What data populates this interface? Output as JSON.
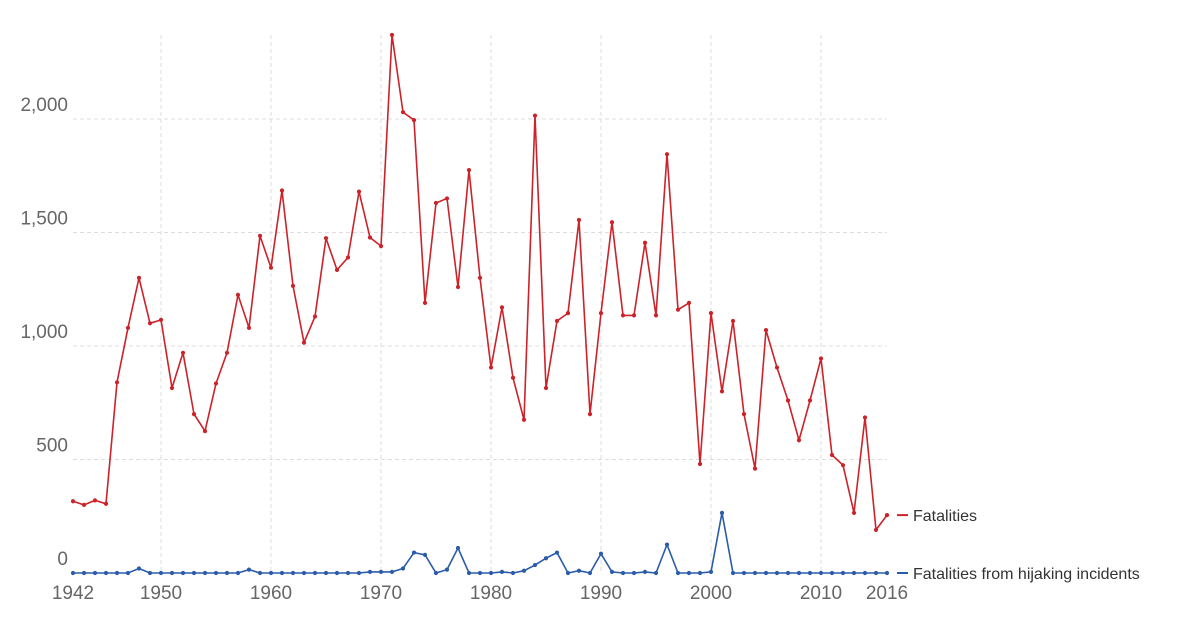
{
  "chart_data": {
    "type": "line",
    "x": [
      1942,
      1943,
      1944,
      1945,
      1946,
      1947,
      1948,
      1949,
      1950,
      1951,
      1952,
      1953,
      1954,
      1955,
      1956,
      1957,
      1958,
      1959,
      1960,
      1961,
      1962,
      1963,
      1964,
      1965,
      1966,
      1967,
      1968,
      1969,
      1970,
      1971,
      1972,
      1973,
      1974,
      1975,
      1976,
      1977,
      1978,
      1979,
      1980,
      1981,
      1982,
      1983,
      1984,
      1985,
      1986,
      1987,
      1988,
      1989,
      1990,
      1991,
      1992,
      1993,
      1994,
      1995,
      1996,
      1997,
      1998,
      1999,
      2000,
      2001,
      2002,
      2003,
      2004,
      2005,
      2006,
      2007,
      2008,
      2009,
      2010,
      2011,
      2012,
      2013,
      2014,
      2015,
      2016
    ],
    "series": [
      {
        "name": "Fatalities",
        "color": "#cc2229",
        "values": [
          316,
          300,
          320,
          305,
          840,
          1080,
          1300,
          1100,
          1115,
          815,
          970,
          700,
          625,
          835,
          970,
          1225,
          1080,
          1485,
          1345,
          1685,
          1265,
          1015,
          1130,
          1475,
          1335,
          1390,
          1680,
          1478,
          1440,
          2370,
          2030,
          1995,
          1190,
          1630,
          1650,
          1260,
          1775,
          1300,
          905,
          1170,
          860,
          675,
          2015,
          815,
          1110,
          1145,
          1555,
          700,
          1145,
          1545,
          1135,
          1135,
          1455,
          1135,
          1845,
          1160,
          1190,
          480,
          1145,
          800,
          1110,
          700,
          460,
          1070,
          905,
          760,
          585,
          760,
          945,
          520,
          475,
          265,
          685,
          190,
          255
        ]
      },
      {
        "name": "Fatalities from hijaking incidents",
        "color": "#2a5caa",
        "values": [
          0,
          0,
          0,
          0,
          0,
          0,
          20,
          0,
          0,
          0,
          0,
          0,
          0,
          0,
          0,
          0,
          15,
          0,
          0,
          0,
          0,
          0,
          0,
          0,
          0,
          0,
          0,
          5,
          5,
          5,
          20,
          90,
          80,
          0,
          15,
          110,
          0,
          0,
          0,
          5,
          0,
          10,
          35,
          65,
          90,
          0,
          10,
          0,
          85,
          5,
          0,
          0,
          5,
          0,
          125,
          0,
          0,
          0,
          5,
          265,
          0,
          0,
          0,
          0,
          0,
          0,
          0,
          0,
          0,
          0,
          0,
          0,
          0,
          0,
          0
        ]
      }
    ],
    "title": "",
    "xlabel": "",
    "ylabel": "",
    "xlim": [
      1942,
      2016
    ],
    "ylim": [
      0,
      2370
    ],
    "xticks": [
      1942,
      1950,
      1960,
      1970,
      1980,
      1990,
      2000,
      2010,
      2016
    ],
    "xtick_labels": [
      "1942",
      "1950",
      "1960",
      "1970",
      "1980",
      "1990",
      "2000",
      "2010",
      "2016"
    ],
    "yticks": [
      0,
      500,
      1000,
      1500,
      2000
    ],
    "ytick_labels": [
      "0",
      "500",
      "1,000",
      "1,500",
      "2,000"
    ],
    "grid": true,
    "legend_placement": "right, at line ends"
  }
}
